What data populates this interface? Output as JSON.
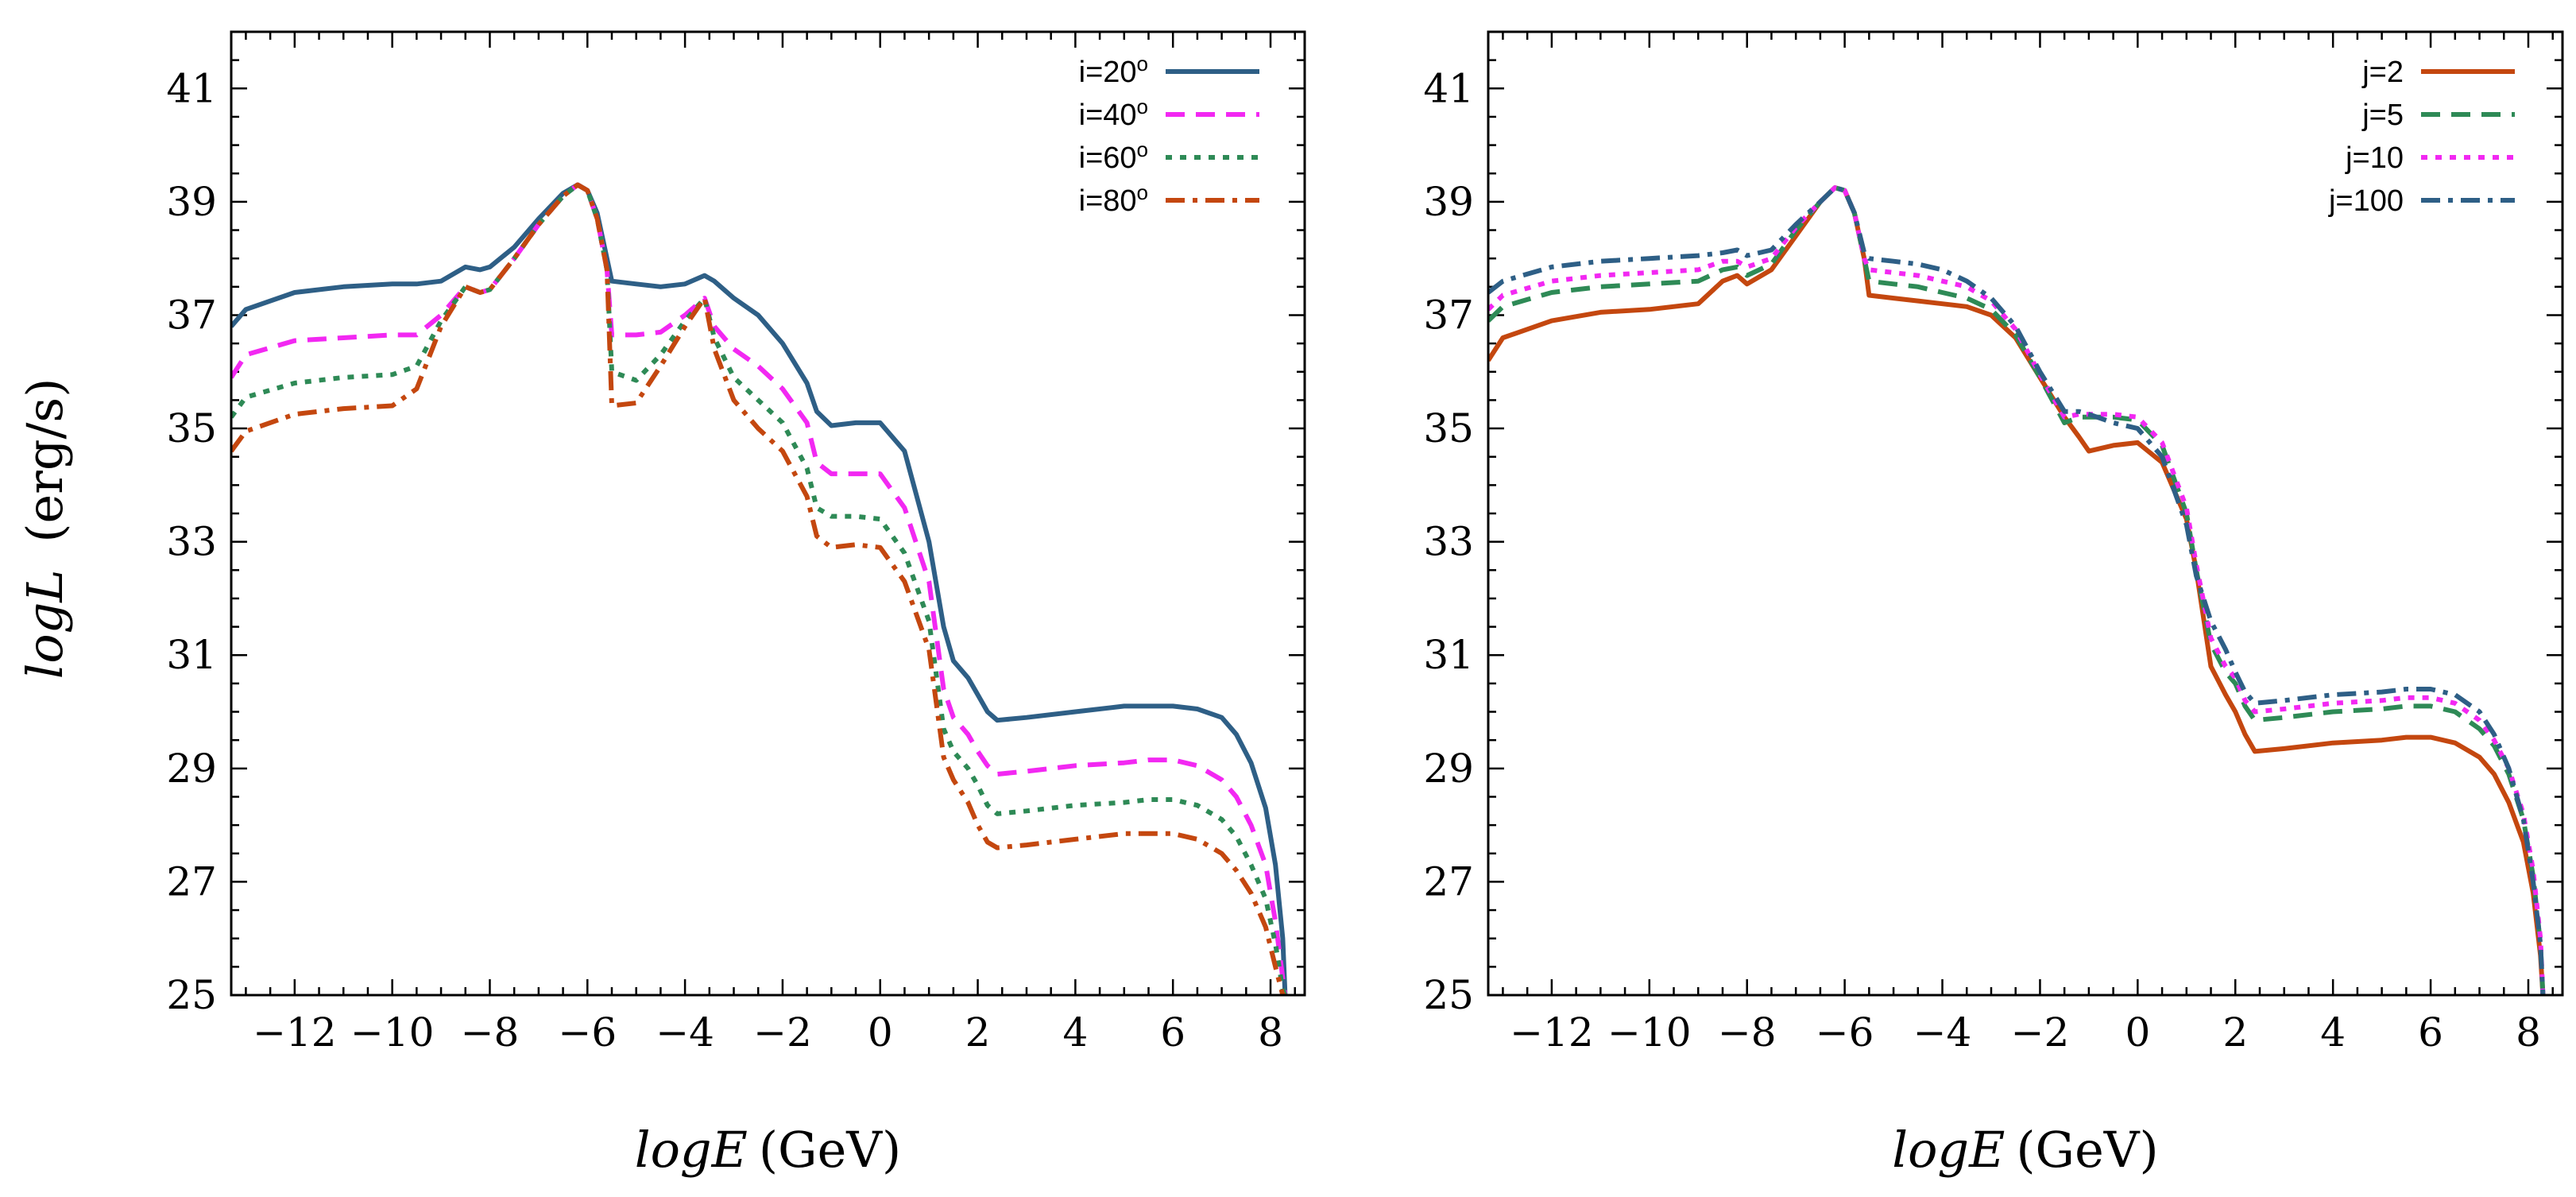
{
  "chart_data": [
    {
      "type": "line",
      "title": "",
      "xlabel_var": "logE",
      "xlabel_unit": "(GeV)",
      "ylabel_var": "logL",
      "ylabel_unit": "(erg/s)",
      "xlim": [
        -13.3,
        8.7
      ],
      "ylim": [
        25,
        42
      ],
      "xticks": [
        -12,
        -10,
        -8,
        -6,
        -4,
        -2,
        0,
        2,
        4,
        6,
        8
      ],
      "xtick_labels": [
        "−12",
        "−10",
        "−8",
        "−6",
        "−4",
        "−2",
        "0",
        "2",
        "4",
        "6",
        "8"
      ],
      "yticks": [
        25,
        27,
        29,
        31,
        33,
        35,
        37,
        39,
        41
      ],
      "ytick_labels": [
        "25",
        "27",
        "29",
        "31",
        "33",
        "35",
        "37",
        "39",
        "41"
      ],
      "legend_position": "top-right",
      "series": [
        {
          "name": "i=20",
          "sup": "o",
          "color": "#2e5f86",
          "dash": "",
          "x": [
            -13.3,
            -13,
            -12,
            -11,
            -10,
            -9.5,
            -9,
            -8.5,
            -8.2,
            -8,
            -7.5,
            -7,
            -6.5,
            -6.2,
            -6,
            -5.8,
            -5.6,
            -5.5,
            -5,
            -4.5,
            -4,
            -3.6,
            -3.4,
            -3,
            -2.5,
            -2,
            -1.5,
            -1.3,
            -1,
            -0.5,
            0,
            0.5,
            1,
            1.3,
            1.5,
            1.8,
            2,
            2.2,
            2.4,
            3,
            4,
            5,
            5.5,
            6,
            6.5,
            7,
            7.3,
            7.6,
            7.9,
            8.1,
            8.25,
            8.3
          ],
          "y": [
            36.8,
            37.1,
            37.4,
            37.5,
            37.55,
            37.55,
            37.6,
            37.85,
            37.8,
            37.85,
            38.2,
            38.7,
            39.15,
            39.3,
            39.2,
            38.8,
            38.0,
            37.6,
            37.55,
            37.5,
            37.55,
            37.7,
            37.6,
            37.3,
            37.0,
            36.5,
            35.8,
            35.3,
            35.05,
            35.1,
            35.1,
            34.6,
            33.0,
            31.5,
            30.9,
            30.6,
            30.3,
            30.0,
            29.85,
            29.9,
            30.0,
            30.1,
            30.1,
            30.1,
            30.05,
            29.9,
            29.6,
            29.1,
            28.3,
            27.3,
            26.0,
            25.0
          ]
        },
        {
          "name": "i=40",
          "sup": "o",
          "color": "#f228f2",
          "dash": "24,14",
          "x": [
            -13.3,
            -13,
            -12,
            -11,
            -10,
            -9.5,
            -9,
            -8.5,
            -8.2,
            -8,
            -7.5,
            -7,
            -6.5,
            -6.2,
            -6,
            -5.8,
            -5.6,
            -5.5,
            -5,
            -4.5,
            -4,
            -3.6,
            -3.4,
            -3,
            -2.5,
            -2,
            -1.5,
            -1.3,
            -1,
            -0.5,
            0,
            0.5,
            1,
            1.3,
            1.5,
            1.8,
            2,
            2.2,
            2.4,
            3,
            4,
            5,
            5.5,
            6,
            6.5,
            7,
            7.3,
            7.6,
            7.9,
            8.1,
            8.25,
            8.3
          ],
          "y": [
            35.9,
            36.3,
            36.55,
            36.6,
            36.65,
            36.65,
            37.0,
            37.5,
            37.4,
            37.45,
            38.0,
            38.6,
            39.1,
            39.3,
            39.2,
            38.7,
            37.8,
            36.65,
            36.65,
            36.7,
            37.0,
            37.3,
            36.8,
            36.4,
            36.1,
            35.7,
            35.1,
            34.4,
            34.2,
            34.2,
            34.2,
            33.6,
            32.3,
            30.4,
            29.9,
            29.6,
            29.3,
            29.05,
            28.9,
            28.95,
            29.05,
            29.1,
            29.15,
            29.15,
            29.05,
            28.8,
            28.5,
            28.0,
            27.3,
            26.3,
            25.3,
            25.0
          ]
        },
        {
          "name": "i=60",
          "sup": "o",
          "color": "#2e8a56",
          "dash": "8,10",
          "x": [
            -13.3,
            -13,
            -12,
            -11,
            -10,
            -9.5,
            -9,
            -8.5,
            -8.2,
            -8,
            -7.5,
            -7,
            -6.5,
            -6.2,
            -6,
            -5.8,
            -5.6,
            -5.5,
            -5,
            -4.5,
            -4,
            -3.6,
            -3.4,
            -3,
            -2.5,
            -2,
            -1.5,
            -1.3,
            -1,
            -0.5,
            0,
            0.5,
            1,
            1.3,
            1.5,
            1.8,
            2,
            2.2,
            2.4,
            3,
            4,
            5,
            5.5,
            6,
            6.5,
            7,
            7.3,
            7.6,
            7.9,
            8.1,
            8.25,
            8.3
          ],
          "y": [
            35.2,
            35.55,
            35.8,
            35.9,
            35.95,
            36.1,
            36.9,
            37.5,
            37.4,
            37.45,
            38.0,
            38.6,
            39.1,
            39.3,
            39.2,
            38.7,
            37.8,
            36.0,
            35.85,
            36.3,
            36.9,
            37.3,
            36.6,
            35.9,
            35.5,
            35.1,
            34.3,
            33.6,
            33.45,
            33.45,
            33.4,
            32.8,
            31.6,
            29.7,
            29.3,
            29.0,
            28.7,
            28.35,
            28.2,
            28.25,
            28.35,
            28.4,
            28.45,
            28.45,
            28.35,
            28.1,
            27.8,
            27.3,
            26.7,
            25.9,
            25.1,
            25.0
          ]
        },
        {
          "name": "i=80",
          "sup": "o",
          "color": "#c4470f",
          "dash": "24,10,6,10",
          "x": [
            -13.3,
            -13,
            -12,
            -11,
            -10,
            -9.5,
            -9,
            -8.5,
            -8.2,
            -8,
            -7.5,
            -7,
            -6.5,
            -6.2,
            -6,
            -5.8,
            -5.6,
            -5.5,
            -5,
            -4.5,
            -4,
            -3.6,
            -3.4,
            -3,
            -2.5,
            -2,
            -1.5,
            -1.3,
            -1,
            -0.5,
            0,
            0.5,
            1,
            1.3,
            1.5,
            1.8,
            2,
            2.2,
            2.4,
            3,
            4,
            5,
            5.5,
            6,
            6.5,
            7,
            7.3,
            7.6,
            7.9,
            8.1,
            8.25,
            8.3
          ],
          "y": [
            34.6,
            34.95,
            35.25,
            35.35,
            35.4,
            35.7,
            36.8,
            37.5,
            37.4,
            37.45,
            38.0,
            38.6,
            39.1,
            39.3,
            39.2,
            38.7,
            37.8,
            35.4,
            35.45,
            36.1,
            36.8,
            37.3,
            36.4,
            35.5,
            35.0,
            34.6,
            33.8,
            33.1,
            32.9,
            32.95,
            32.9,
            32.3,
            31.1,
            29.2,
            28.8,
            28.4,
            28.0,
            27.7,
            27.6,
            27.65,
            27.75,
            27.85,
            27.85,
            27.85,
            27.75,
            27.5,
            27.2,
            26.8,
            26.2,
            25.5,
            25.0,
            25.0
          ]
        }
      ]
    },
    {
      "type": "line",
      "title": "",
      "xlabel_var": "logE",
      "xlabel_unit": "(GeV)",
      "xlim": [
        -13.3,
        8.7
      ],
      "ylim": [
        25,
        42
      ],
      "xticks": [
        -12,
        -10,
        -8,
        -6,
        -4,
        -2,
        0,
        2,
        4,
        6,
        8
      ],
      "xtick_labels": [
        "−12",
        "−10",
        "−8",
        "−6",
        "−4",
        "−2",
        "0",
        "2",
        "4",
        "6",
        "8"
      ],
      "yticks": [
        25,
        27,
        29,
        31,
        33,
        35,
        37,
        39,
        41
      ],
      "ytick_labels": [
        "25",
        "27",
        "29",
        "31",
        "33",
        "35",
        "37",
        "39",
        "41"
      ],
      "legend_position": "top-right",
      "series": [
        {
          "name": "j=2",
          "sup": "",
          "color": "#c4470f",
          "dash": "",
          "x": [
            -13.3,
            -13,
            -12,
            -11,
            -10,
            -9,
            -8.5,
            -8.2,
            -8,
            -7.5,
            -7,
            -6.5,
            -6.2,
            -6,
            -5.8,
            -5.6,
            -5.5,
            -5,
            -4.5,
            -4,
            -3.5,
            -3,
            -2.5,
            -2,
            -1.5,
            -1.2,
            -1,
            -0.5,
            0,
            0.5,
            1,
            1.2,
            1.5,
            1.8,
            2,
            2.2,
            2.4,
            3,
            4,
            5,
            5.5,
            6,
            6.5,
            7,
            7.3,
            7.6,
            7.9,
            8.1,
            8.25,
            8.3
          ],
          "y": [
            36.2,
            36.6,
            36.9,
            37.05,
            37.1,
            37.2,
            37.6,
            37.7,
            37.55,
            37.8,
            38.4,
            39.0,
            39.25,
            39.2,
            38.8,
            38.0,
            37.35,
            37.3,
            37.25,
            37.2,
            37.15,
            37.0,
            36.6,
            35.9,
            35.2,
            34.85,
            34.6,
            34.7,
            34.75,
            34.4,
            33.4,
            32.5,
            30.8,
            30.3,
            30.0,
            29.6,
            29.3,
            29.35,
            29.45,
            29.5,
            29.55,
            29.55,
            29.45,
            29.2,
            28.9,
            28.4,
            27.7,
            26.8,
            25.7,
            25.0
          ]
        },
        {
          "name": "j=5",
          "sup": "",
          "color": "#2e8a56",
          "dash": "24,14",
          "x": [
            -13.3,
            -13,
            -12,
            -11,
            -10,
            -9,
            -8.5,
            -8.2,
            -8,
            -7.5,
            -7,
            -6.5,
            -6.2,
            -6,
            -5.8,
            -5.6,
            -5.5,
            -5,
            -4.5,
            -4,
            -3.5,
            -3,
            -2.5,
            -2,
            -1.5,
            -1.2,
            -1,
            -0.5,
            0,
            0.5,
            1,
            1.2,
            1.5,
            1.8,
            2,
            2.2,
            2.4,
            3,
            4,
            5,
            5.5,
            6,
            6.5,
            7,
            7.3,
            7.6,
            7.9,
            8.1,
            8.25,
            8.3
          ],
          "y": [
            36.9,
            37.15,
            37.4,
            37.5,
            37.55,
            37.6,
            37.8,
            37.85,
            37.7,
            37.9,
            38.5,
            39.0,
            39.25,
            39.2,
            38.8,
            38.0,
            37.6,
            37.55,
            37.5,
            37.4,
            37.3,
            37.1,
            36.65,
            35.9,
            35.1,
            35.2,
            35.2,
            35.2,
            35.15,
            34.7,
            33.5,
            32.5,
            31.2,
            30.7,
            30.5,
            30.1,
            29.85,
            29.9,
            30.0,
            30.05,
            30.1,
            30.1,
            30.0,
            29.7,
            29.4,
            28.9,
            28.1,
            27.1,
            25.9,
            25.0
          ]
        },
        {
          "name": "j=10",
          "sup": "",
          "color": "#f228f2",
          "dash": "8,10",
          "x": [
            -13.3,
            -13,
            -12,
            -11,
            -10,
            -9,
            -8.5,
            -8.2,
            -8,
            -7.5,
            -7,
            -6.5,
            -6.2,
            -6,
            -5.8,
            -5.6,
            -5.5,
            -5,
            -4.5,
            -4,
            -3.5,
            -3,
            -2.5,
            -2,
            -1.5,
            -1.2,
            -1,
            -0.5,
            0,
            0.5,
            1,
            1.2,
            1.5,
            1.8,
            2,
            2.2,
            2.4,
            3,
            4,
            5,
            5.5,
            6,
            6.5,
            7,
            7.3,
            7.6,
            7.9,
            8.1,
            8.25,
            8.3
          ],
          "y": [
            37.1,
            37.35,
            37.6,
            37.7,
            37.75,
            37.8,
            37.95,
            37.95,
            37.85,
            38.0,
            38.55,
            39.0,
            39.25,
            39.2,
            38.8,
            38.0,
            37.8,
            37.75,
            37.7,
            37.6,
            37.5,
            37.25,
            36.75,
            35.95,
            35.2,
            35.25,
            35.25,
            35.25,
            35.2,
            34.75,
            33.6,
            32.6,
            31.3,
            30.8,
            30.6,
            30.2,
            30.0,
            30.05,
            30.15,
            30.2,
            30.25,
            30.25,
            30.15,
            29.85,
            29.5,
            29.0,
            28.2,
            27.2,
            26.0,
            25.0
          ]
        },
        {
          "name": "j=100",
          "sup": "",
          "color": "#2e5f86",
          "dash": "24,10,6,10",
          "x": [
            -13.3,
            -13,
            -12,
            -11,
            -10,
            -9,
            -8.5,
            -8.2,
            -8,
            -7.5,
            -7,
            -6.5,
            -6.2,
            -6,
            -5.8,
            -5.6,
            -5.5,
            -5,
            -4.5,
            -4,
            -3.5,
            -3,
            -2.5,
            -2,
            -1.5,
            -1.2,
            -1,
            -0.5,
            0,
            0.5,
            1,
            1.2,
            1.5,
            1.8,
            2,
            2.2,
            2.4,
            3,
            4,
            5,
            5.5,
            6,
            6.5,
            7,
            7.3,
            7.6,
            7.9,
            8.1,
            8.25,
            8.3
          ],
          "y": [
            37.4,
            37.6,
            37.85,
            37.95,
            38.0,
            38.05,
            38.1,
            38.15,
            38.05,
            38.15,
            38.6,
            39.0,
            39.25,
            39.2,
            38.8,
            38.1,
            38.0,
            37.95,
            37.9,
            37.8,
            37.6,
            37.3,
            36.8,
            36.0,
            35.3,
            35.3,
            35.25,
            35.1,
            35.0,
            34.5,
            33.3,
            32.4,
            31.6,
            31.1,
            30.7,
            30.35,
            30.15,
            30.2,
            30.3,
            30.35,
            30.4,
            30.4,
            30.3,
            30.0,
            29.6,
            29.0,
            28.1,
            27.0,
            25.9,
            25.0
          ]
        }
      ]
    }
  ]
}
